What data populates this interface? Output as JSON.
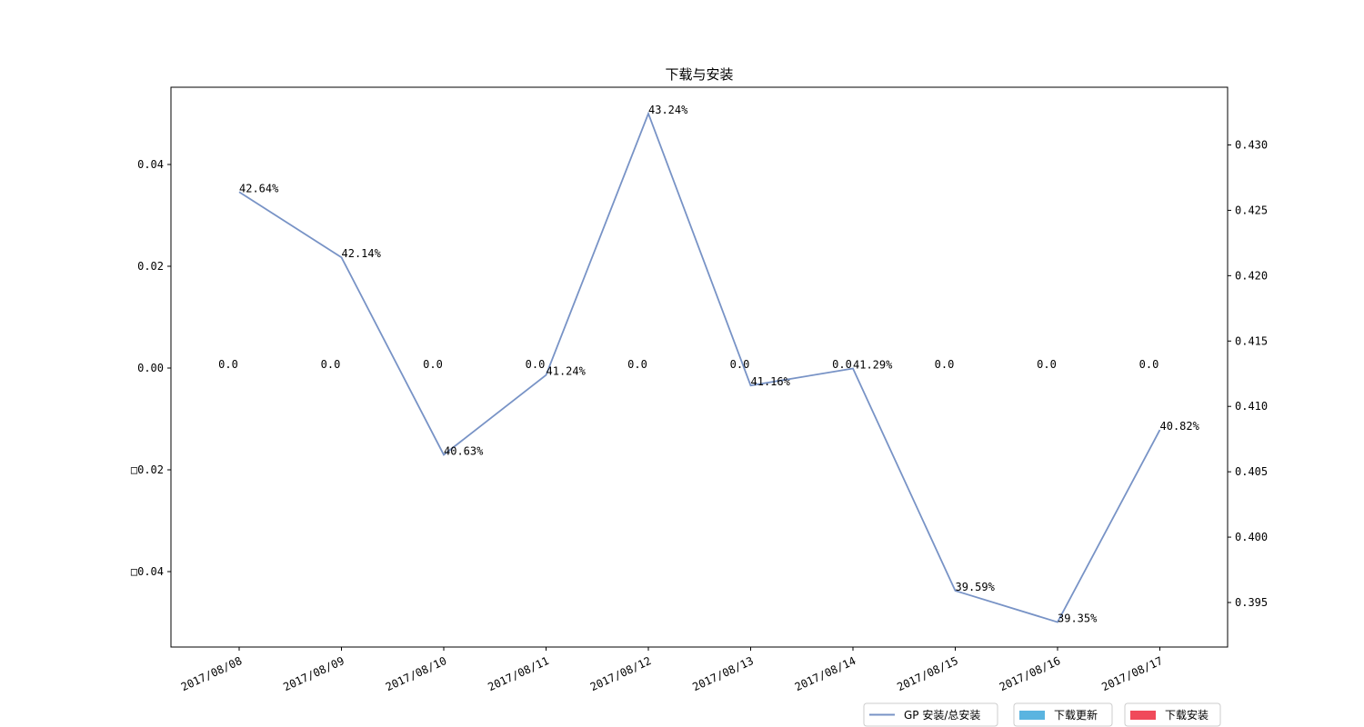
{
  "chart_data": {
    "type": "line",
    "title": "下载与安装",
    "categories": [
      "2017/08/08",
      "2017/08/09",
      "2017/08/10",
      "2017/08/11",
      "2017/08/12",
      "2017/08/13",
      "2017/08/14",
      "2017/08/15",
      "2017/08/16",
      "2017/08/17"
    ],
    "series": [
      {
        "name": "GP 安装/总安装",
        "axis": "right",
        "color": "#7893c6",
        "values": [
          0.4264,
          0.4214,
          0.4063,
          0.4124,
          0.4324,
          0.4116,
          0.4129,
          0.3959,
          0.3935,
          0.4082
        ],
        "labels": [
          "42.64%",
          "42.14%",
          "40.63%",
          "41.24%",
          "43.24%",
          "41.16%",
          "41.29%",
          "39.59%",
          "39.35%",
          "40.82%"
        ]
      },
      {
        "name": "下载更新",
        "axis": "left",
        "type": "bar",
        "color": "#5ab4e0",
        "values": [
          0,
          0,
          0,
          0,
          0,
          0,
          0,
          0,
          0,
          0
        ]
      },
      {
        "name": "下载安装",
        "axis": "left",
        "type": "bar",
        "color": "#f04a5a",
        "values": [
          0,
          0,
          0,
          0,
          0,
          0,
          0,
          0,
          0,
          0
        ],
        "labels": [
          "0.0",
          "0.0",
          "0.0",
          "0.0",
          "0.0",
          "0.0",
          "0.0",
          "0.0",
          "0.0",
          "0.0"
        ]
      }
    ],
    "left_axis": {
      "ylim": [
        -0.055,
        0.055
      ],
      "ticks": [
        0.04,
        0.02,
        0.0,
        -0.02,
        -0.04
      ],
      "tick_labels": [
        "0.04",
        "0.02",
        "0.00",
        "□0.02",
        "□0.04"
      ]
    },
    "right_axis": {
      "ticks": [
        0.43,
        0.425,
        0.42,
        0.415,
        0.41,
        0.405,
        0.4,
        0.395
      ],
      "tick_labels": [
        "0.430",
        "0.425",
        "0.420",
        "0.415",
        "0.410",
        "0.405",
        "0.400",
        "0.395"
      ]
    },
    "legend_position": "below-right",
    "grid": false
  }
}
